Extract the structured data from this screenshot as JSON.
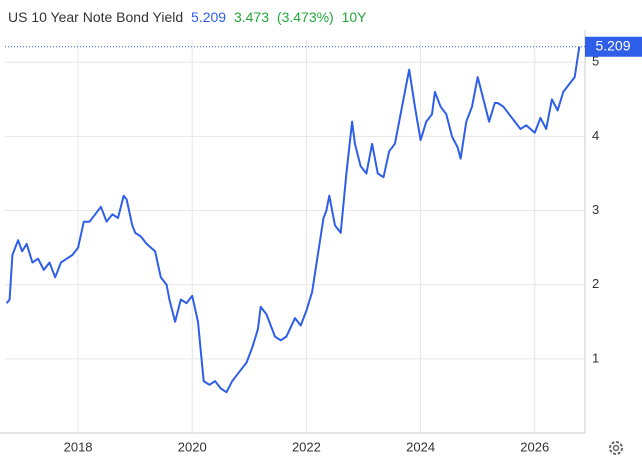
{
  "chart_data": {
    "type": "line",
    "title": "US 10 Year Note Bond Yield",
    "change": 3.473,
    "change_percent": {
      "value": 3.473,
      "label": "(3.473%)"
    },
    "period": "10Y",
    "xlim": [
      2016.72,
      2026.88
    ],
    "xticks": [
      2018,
      2020,
      2022,
      2024,
      2026
    ],
    "ylim": [
      0,
      5.3
    ],
    "yticks": [
      1,
      2,
      3,
      4,
      5
    ],
    "grid": true,
    "series": [
      {
        "name": "US 10 Year Note Bond Yield",
        "color": "#2f5fe8",
        "x": [
          2016.75,
          2016.8,
          2016.85,
          2016.95,
          2017.02,
          2017.1,
          2017.2,
          2017.3,
          2017.4,
          2017.5,
          2017.6,
          2017.7,
          2017.8,
          2017.9,
          2018.0,
          2018.1,
          2018.2,
          2018.3,
          2018.4,
          2018.5,
          2018.6,
          2018.7,
          2018.8,
          2018.85,
          2018.95,
          2019.0,
          2019.1,
          2019.2,
          2019.35,
          2019.45,
          2019.55,
          2019.6,
          2019.7,
          2019.8,
          2019.9,
          2020.0,
          2020.1,
          2020.15,
          2020.2,
          2020.3,
          2020.4,
          2020.5,
          2020.6,
          2020.7,
          2020.8,
          2020.95,
          2021.05,
          2021.15,
          2021.2,
          2021.3,
          2021.45,
          2021.55,
          2021.65,
          2021.8,
          2021.9,
          2022.0,
          2022.1,
          2022.2,
          2022.3,
          2022.35,
          2022.4,
          2022.5,
          2022.6,
          2022.7,
          2022.8,
          2022.85,
          2022.95,
          2023.05,
          2023.15,
          2023.25,
          2023.35,
          2023.45,
          2023.55,
          2023.65,
          2023.75,
          2023.8,
          2023.9,
          2024.0,
          2024.1,
          2024.2,
          2024.25,
          2024.35,
          2024.45,
          2024.55,
          2024.65,
          2024.7,
          2024.8,
          2024.9,
          2025.0,
          2025.1,
          2025.2,
          2025.3,
          2025.35,
          2025.45,
          2025.55,
          2025.65,
          2025.75,
          2025.85,
          2026.0,
          2026.1,
          2026.2,
          2026.3,
          2026.4,
          2026.5,
          2026.6,
          2026.7,
          2026.78
        ],
        "values": [
          1.75,
          1.8,
          2.4,
          2.6,
          2.45,
          2.55,
          2.3,
          2.35,
          2.2,
          2.3,
          2.1,
          2.3,
          2.35,
          2.4,
          2.5,
          2.85,
          2.85,
          2.95,
          3.05,
          2.85,
          2.95,
          2.9,
          3.2,
          3.15,
          2.8,
          2.7,
          2.65,
          2.55,
          2.45,
          2.1,
          2.0,
          1.8,
          1.5,
          1.8,
          1.75,
          1.85,
          1.5,
          1.1,
          0.7,
          0.65,
          0.7,
          0.6,
          0.55,
          0.7,
          0.8,
          0.95,
          1.15,
          1.4,
          1.7,
          1.6,
          1.3,
          1.25,
          1.3,
          1.55,
          1.45,
          1.65,
          1.9,
          2.4,
          2.9,
          3.0,
          3.2,
          2.8,
          2.7,
          3.5,
          4.2,
          3.9,
          3.6,
          3.5,
          3.9,
          3.5,
          3.45,
          3.8,
          3.9,
          4.3,
          4.7,
          4.9,
          4.4,
          3.95,
          4.2,
          4.3,
          4.6,
          4.4,
          4.3,
          4.0,
          3.85,
          3.7,
          4.2,
          4.4,
          4.8,
          4.5,
          4.2,
          4.45,
          4.45,
          4.4,
          4.3,
          4.2,
          4.1,
          4.15,
          4.05,
          4.25,
          4.1,
          4.5,
          4.35,
          4.6,
          4.7,
          4.8,
          5.209
        ]
      }
    ]
  }
}
